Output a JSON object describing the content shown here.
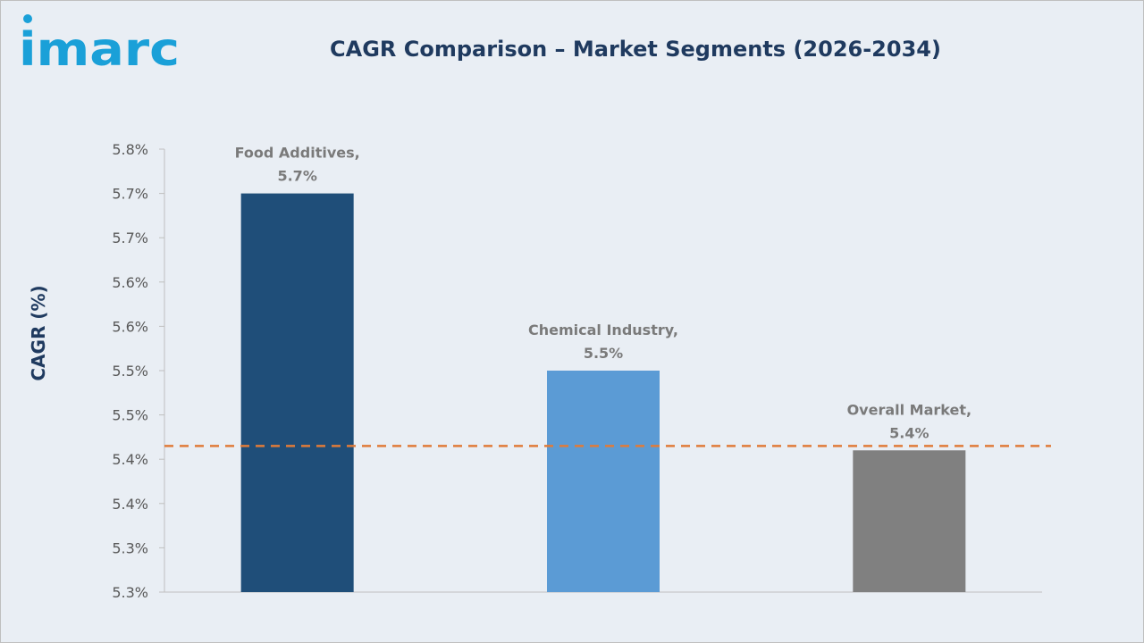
{
  "logo": {
    "text": "imarc"
  },
  "colors": {
    "background": "#e9eef4",
    "title": "#1f3a5f",
    "logo": "#1aa0d8",
    "reference_line": "#e07b39"
  },
  "chart_data": {
    "type": "bar",
    "title": "CAGR Comparison – Market Segments (2026-2034)",
    "xlabel": "",
    "ylabel": "CAGR (%)",
    "categories": [
      "Food Additives",
      "Chemical Industry",
      "Overall Market"
    ],
    "values": [
      5.7,
      5.5,
      5.41
    ],
    "data_labels": [
      [
        "Food Additives,",
        "5.7%"
      ],
      [
        "Chemical Industry,",
        "5.5%"
      ],
      [
        "Overall Market,",
        "5.4%"
      ]
    ],
    "bar_colors": [
      "#1f4e79",
      "#5b9bd5",
      "#808080"
    ],
    "ylim": [
      5.25,
      5.75
    ],
    "yticks": [
      5.25,
      5.3,
      5.35,
      5.4,
      5.45,
      5.5,
      5.55,
      5.6,
      5.65,
      5.7,
      5.75
    ],
    "ytick_labels": [
      "5.3%",
      "5.3%",
      "5.4%",
      "5.4%",
      "5.5%",
      "5.5%",
      "5.6%",
      "5.6%",
      "5.7%",
      "5.7%",
      "5.8%"
    ],
    "reference_line": {
      "value": 5.415,
      "style": "dashed",
      "color": "#e07b39"
    },
    "grid": false,
    "legend": "none"
  }
}
